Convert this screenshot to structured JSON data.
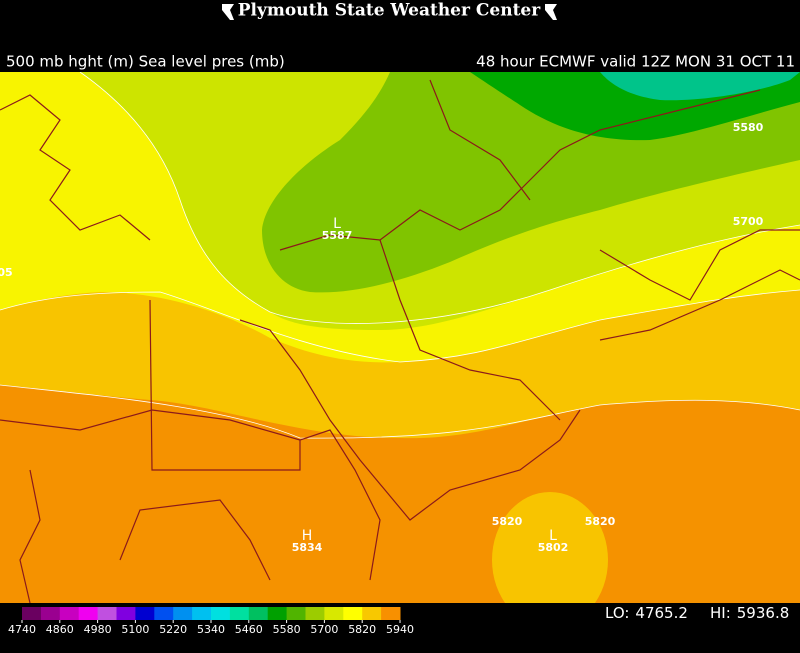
{
  "header": {
    "title": "Plymouth State Weather Center",
    "left": "500 mb hght (m) Sea level pres (mb)",
    "right": "48 hour ECMWF valid 12Z MON 31 OCT 11"
  },
  "map": {
    "contour_labels": [
      "5580",
      "5700",
      "05",
      "5820",
      "5820"
    ],
    "centers": [
      {
        "symbol": "L",
        "value": "5587"
      },
      {
        "symbol": "L",
        "value": "5802"
      },
      {
        "symbol": "H",
        "value": "5834"
      }
    ]
  },
  "colorbar": {
    "ticks": [
      4740,
      4860,
      4980,
      5100,
      5220,
      5340,
      5460,
      5580,
      5700,
      5820,
      5940
    ],
    "colors": [
      "#6a0060",
      "#9a0090",
      "#c800c0",
      "#f000f0",
      "#c050e0",
      "#8000e0",
      "#0000d0",
      "#0050f0",
      "#0090f0",
      "#00c0f0",
      "#00e0e0",
      "#00e0a0",
      "#00c060",
      "#00a000",
      "#50b400",
      "#9ccc00",
      "#d8e800",
      "#ffff00",
      "#f8c800",
      "#f89000"
    ]
  },
  "stats": {
    "lo_label": "LO:",
    "lo": 4765.2,
    "hi_label": "HI:",
    "hi": 5936.8
  }
}
